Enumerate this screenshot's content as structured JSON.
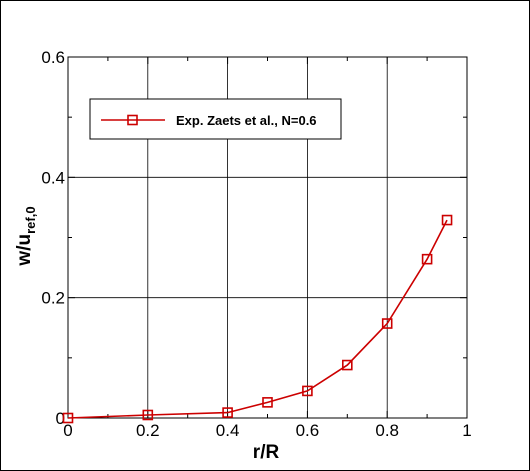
{
  "chart_data": {
    "type": "line",
    "xlabel": "r/R",
    "ylabel": {
      "main": "w/u",
      "subscript": "ref,0"
    },
    "xlim": [
      0,
      1
    ],
    "ylim": [
      0,
      0.6
    ],
    "xticks": [
      "0",
      "0.2",
      "0.4",
      "0.6",
      "0.8",
      "1"
    ],
    "xtick_values": [
      0,
      0.2,
      0.4,
      0.6,
      0.8,
      1
    ],
    "yticks": [
      "0",
      "0.2",
      "0.4",
      "0.6"
    ],
    "ytick_values": [
      0,
      0.2,
      0.4,
      0.6
    ],
    "grid": true,
    "legend_position": "top-left",
    "series": [
      {
        "name": "Exp. Zaets et al., N=0.6",
        "color": "#cc0000",
        "marker": "square",
        "x": [
          0,
          0.2,
          0.4,
          0.5,
          0.6,
          0.7,
          0.8,
          0.9,
          0.95
        ],
        "y": [
          0,
          0.005,
          0.009,
          0.026,
          0.045,
          0.088,
          0.157,
          0.264,
          0.329
        ]
      }
    ]
  }
}
